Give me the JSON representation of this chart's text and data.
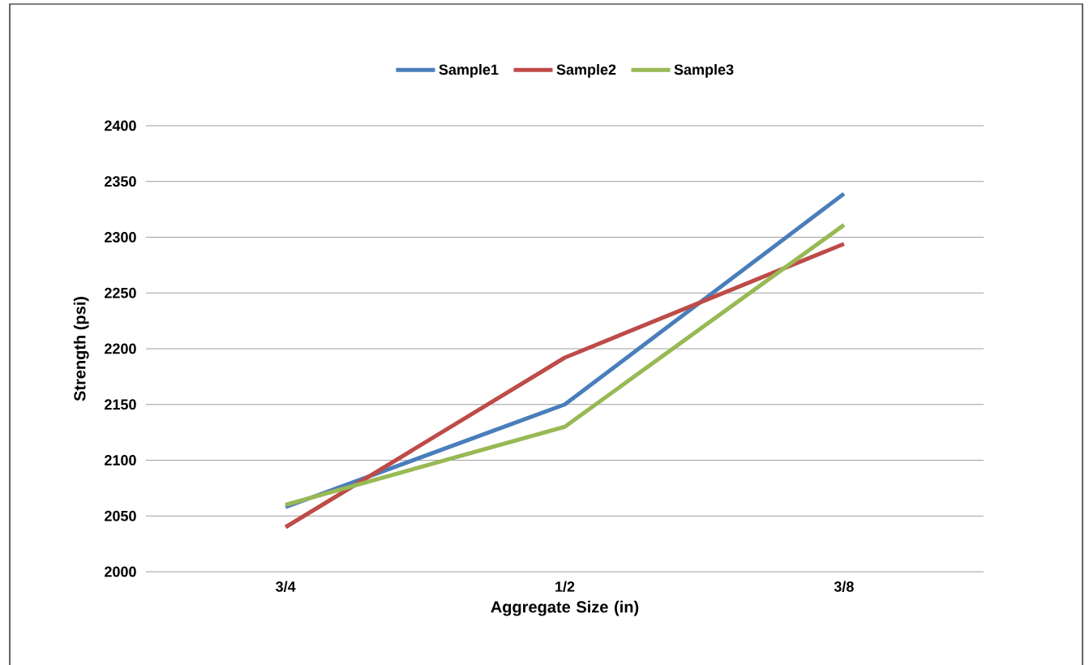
{
  "chart_data": {
    "type": "line",
    "xlabel": "Aggregate Size (in)",
    "ylabel": "Strength (psi)",
    "categories": [
      "3/4",
      "1/2",
      "3/8"
    ],
    "series": [
      {
        "name": "Sample1",
        "color": "#4a7ebb",
        "values": [
          2058,
          2150,
          2339
        ]
      },
      {
        "name": "Sample2",
        "color": "#be4b48",
        "values": [
          2040,
          2192,
          2294
        ]
      },
      {
        "name": "Sample3",
        "color": "#98b954",
        "values": [
          2060,
          2130,
          2311
        ]
      }
    ],
    "ylim": [
      2000,
      2400
    ],
    "yticks": [
      2000,
      2050,
      2100,
      2150,
      2200,
      2250,
      2300,
      2350,
      2400
    ],
    "grid": "y",
    "legend": "top",
    "marker": "none",
    "line_style": "solid"
  }
}
